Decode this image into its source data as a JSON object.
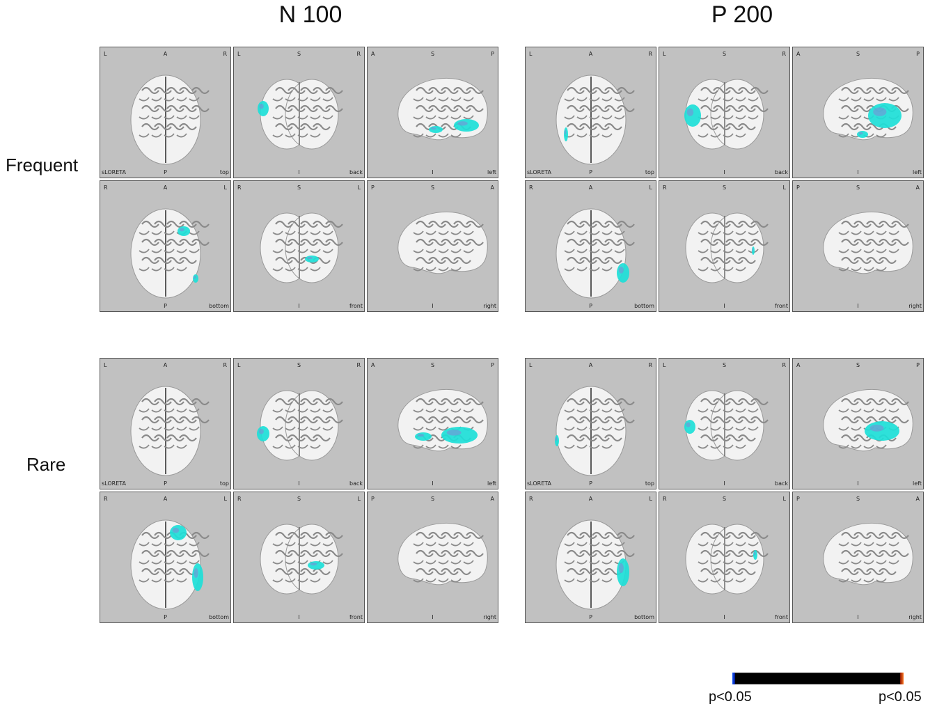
{
  "columns": [
    "N 100",
    "P 200"
  ],
  "rows": [
    "Frequent",
    "Rare"
  ],
  "views": [
    {
      "tl": "L",
      "tc": "A",
      "tr": "R",
      "bl": "sLORETA",
      "bc": "P",
      "br": "top",
      "kind": "top"
    },
    {
      "tl": "L",
      "tc": "S",
      "tr": "R",
      "bl": "",
      "bc": "I",
      "br": "back",
      "kind": "back"
    },
    {
      "tl": "A",
      "tc": "S",
      "tr": "P",
      "bl": "",
      "bc": "I",
      "br": "left",
      "kind": "left"
    },
    {
      "tl": "R",
      "tc": "A",
      "tr": "L",
      "bl": "",
      "bc": "P",
      "br": "bottom",
      "kind": "bottom"
    },
    {
      "tl": "R",
      "tc": "S",
      "tr": "L",
      "bl": "",
      "bc": "I",
      "br": "front",
      "kind": "front"
    },
    {
      "tl": "P",
      "tc": "S",
      "tr": "A",
      "bl": "",
      "bc": "I",
      "br": "right",
      "kind": "right"
    }
  ],
  "colorbar": {
    "left_label": "p<0.05",
    "right_label": "p<0.05",
    "negative_color": "#1a5cff",
    "positive_color": "#ff7a22"
  },
  "colors": {
    "panel_bg": "#c1c1c1",
    "brain": "#f2f2f2",
    "activation": "#1de0d8",
    "activation_dim": "#7a8fd6"
  }
}
